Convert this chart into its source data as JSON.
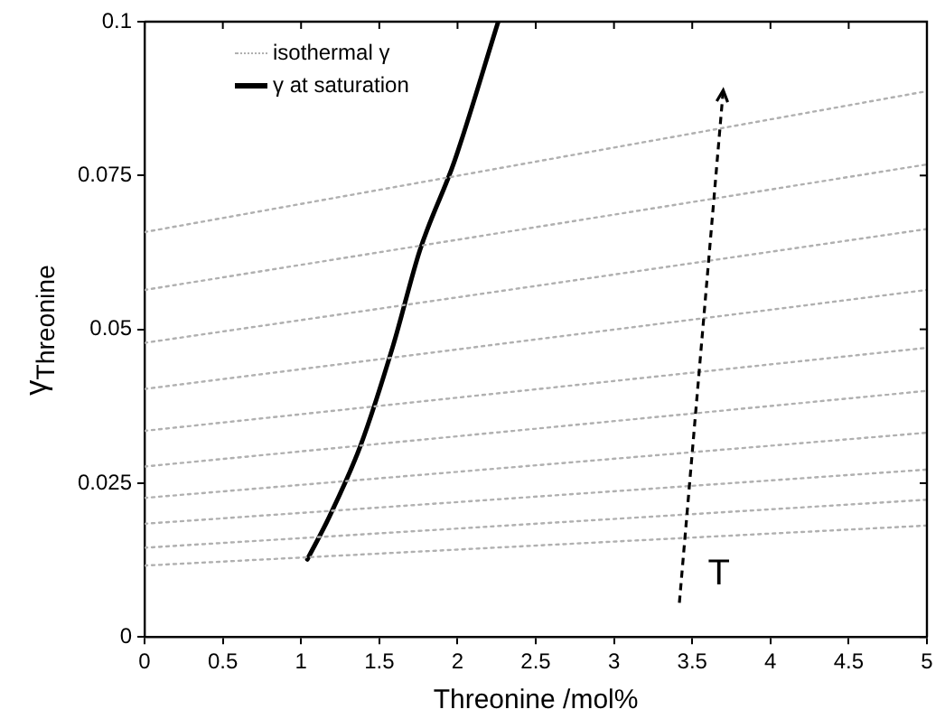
{
  "chart_data": {
    "type": "line",
    "xlabel": "Threonine /mol%",
    "ylabel": "γ$_{Threonine}$",
    "xlim": [
      0,
      5
    ],
    "ylim": [
      0,
      0.1
    ],
    "xticks": [
      0,
      0.5,
      1,
      1.5,
      2,
      2.5,
      3,
      3.5,
      4,
      4.5,
      5
    ],
    "yticks": [
      0,
      0.025,
      0.05,
      0.075,
      0.1
    ],
    "grid": false,
    "legend": "top left",
    "marker": "none",
    "annotations": [
      "T"
    ],
    "series": [
      {
        "name": "isothermal γ",
        "color": "#b0b0b0",
        "line_style": "dotted",
        "x": [
          0,
          5
        ],
        "values": [
          0.0658,
          0.0887
        ]
      },
      {
        "color": "#b0b0b0",
        "line_style": "dotted",
        "x": [
          0,
          5
        ],
        "values": [
          0.0564,
          0.0768
        ]
      },
      {
        "color": "#b0b0b0",
        "line_style": "dotted",
        "x": [
          0,
          5
        ],
        "values": [
          0.0478,
          0.0663
        ]
      },
      {
        "color": "#b0b0b0",
        "line_style": "dotted",
        "x": [
          0,
          5
        ],
        "values": [
          0.0403,
          0.0564
        ]
      },
      {
        "color": "#b0b0b0",
        "line_style": "dotted",
        "x": [
          0,
          5
        ],
        "values": [
          0.0335,
          0.047
        ]
      },
      {
        "color": "#b0b0b0",
        "line_style": "dotted",
        "x": [
          0,
          5
        ],
        "values": [
          0.0277,
          0.04
        ]
      },
      {
        "color": "#b0b0b0",
        "line_style": "dotted",
        "x": [
          0,
          5
        ],
        "values": [
          0.0226,
          0.0332
        ]
      },
      {
        "color": "#b0b0b0",
        "line_style": "dotted",
        "x": [
          0,
          5
        ],
        "values": [
          0.0184,
          0.0272
        ]
      },
      {
        "color": "#b0b0b0",
        "line_style": "dotted",
        "x": [
          0,
          5
        ],
        "values": [
          0.0145,
          0.0223
        ]
      },
      {
        "color": "#b0b0b0",
        "line_style": "dotted",
        "x": [
          0,
          5
        ],
        "values": [
          0.0116,
          0.0181
        ]
      },
      {
        "name": "γ at saturation",
        "color": "#000000",
        "line_style": "solid",
        "x": [
          1.04,
          1.18,
          1.38,
          1.59,
          1.76,
          1.98,
          2.26
        ],
        "values": [
          0.0126,
          0.0195,
          0.0311,
          0.0475,
          0.0629,
          0.0773,
          0.1
        ]
      }
    ]
  }
}
